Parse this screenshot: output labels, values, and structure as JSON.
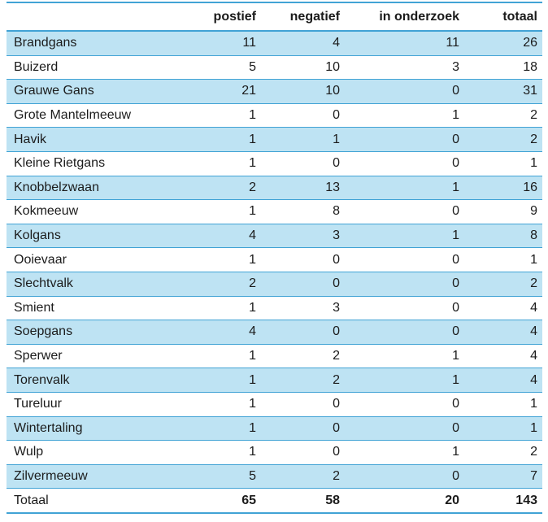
{
  "colors": {
    "row_highlight": "#bee3f3",
    "rule_blue": "#41a3d5",
    "text": "#1b1b1b",
    "background": "#ffffff"
  },
  "chart_data": {
    "type": "table",
    "columns": [
      "",
      "postief",
      "negatief",
      "in onderzoek",
      "totaal"
    ],
    "rows": [
      [
        "Brandgans",
        11,
        4,
        11,
        26
      ],
      [
        "Buizerd",
        5,
        10,
        3,
        18
      ],
      [
        "Grauwe Gans",
        21,
        10,
        0,
        31
      ],
      [
        "Grote Mantelmeeuw",
        1,
        0,
        1,
        2
      ],
      [
        "Havik",
        1,
        1,
        0,
        2
      ],
      [
        "Kleine Rietgans",
        1,
        0,
        0,
        1
      ],
      [
        "Knobbelzwaan",
        2,
        13,
        1,
        16
      ],
      [
        "Kokmeeuw",
        1,
        8,
        0,
        9
      ],
      [
        "Kolgans",
        4,
        3,
        1,
        8
      ],
      [
        "Ooievaar",
        1,
        0,
        0,
        1
      ],
      [
        "Slechtvalk",
        2,
        0,
        0,
        2
      ],
      [
        "Smient",
        1,
        3,
        0,
        4
      ],
      [
        "Soepgans",
        4,
        0,
        0,
        4
      ],
      [
        "Sperwer",
        1,
        2,
        1,
        4
      ],
      [
        "Torenvalk",
        1,
        2,
        1,
        4
      ],
      [
        "Tureluur",
        1,
        0,
        0,
        1
      ],
      [
        "Wintertaling",
        1,
        0,
        0,
        1
      ],
      [
        "Wulp",
        1,
        0,
        1,
        2
      ],
      [
        "Zilvermeeuw",
        5,
        2,
        0,
        7
      ]
    ],
    "total_row": [
      "Totaal",
      65,
      58,
      20,
      143
    ],
    "layout": {
      "striped": true,
      "first_body_row_highlighted": true,
      "numeric_alignment": "right"
    }
  }
}
